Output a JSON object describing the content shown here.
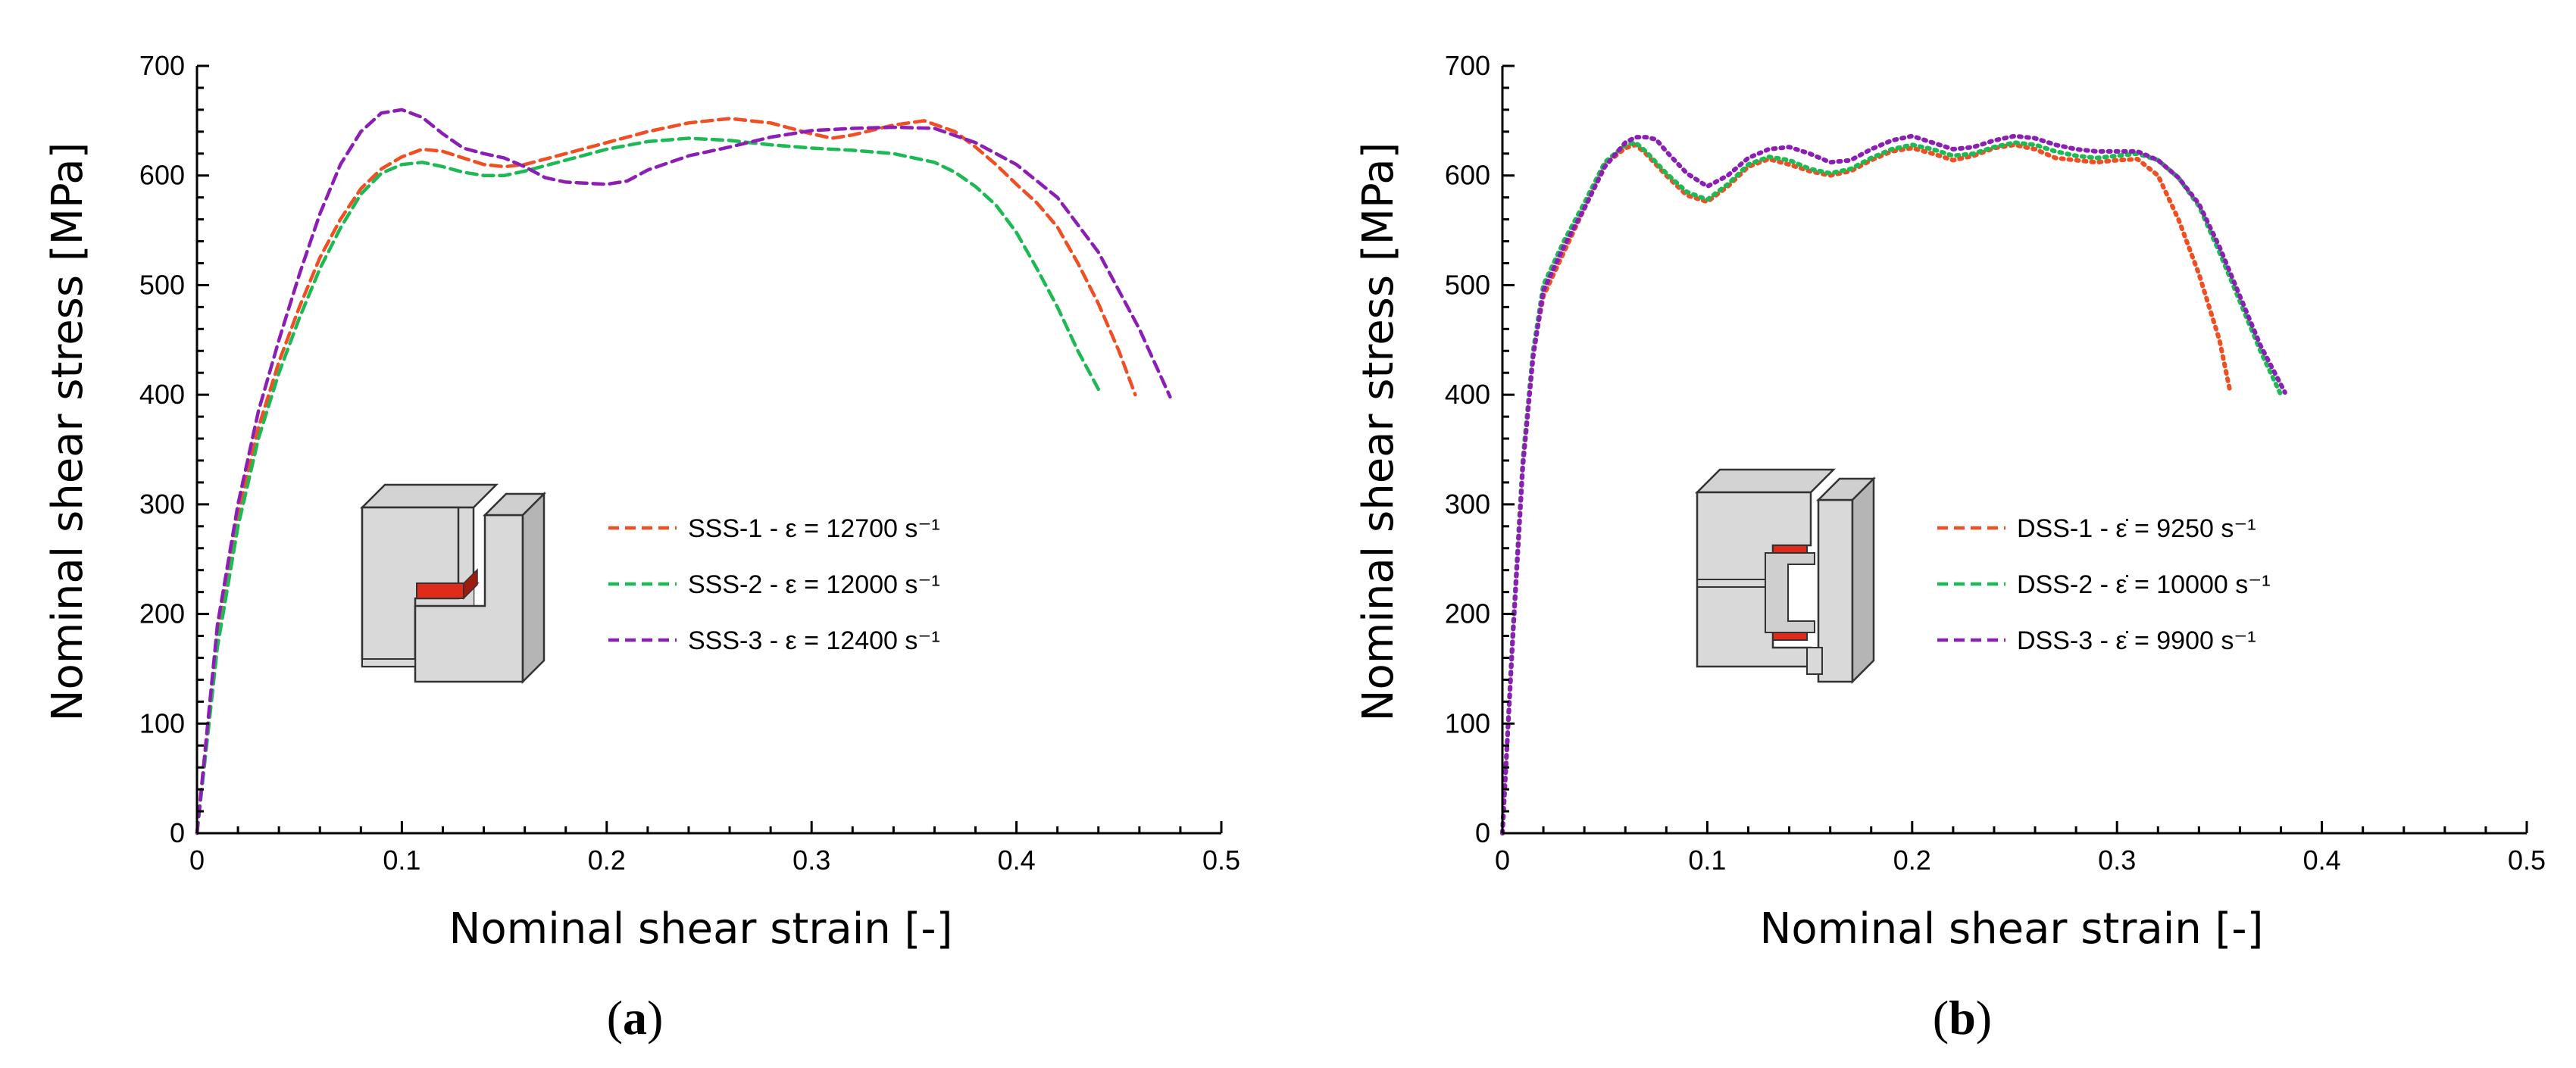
{
  "chart_data": [
    {
      "type": "line",
      "panel": "a",
      "panel_label_open": "(",
      "panel_label_letter": "a",
      "panel_label_close": ")",
      "xlabel": "Nominal shear strain [-]",
      "ylabel": "Nominal shear stress [MPa]",
      "xlim": [
        0,
        0.5
      ],
      "ylim": [
        0,
        700
      ],
      "xticks": [
        0,
        0.1,
        0.2,
        0.3,
        0.4,
        0.5
      ],
      "xtick_labels": [
        "0",
        "0.1",
        "0.2",
        "0.3",
        "0.4",
        "0.5"
      ],
      "yticks": [
        0,
        100,
        200,
        300,
        400,
        500,
        600,
        700
      ],
      "ytick_labels": [
        "0",
        "100",
        "200",
        "300",
        "400",
        "500",
        "600",
        "700"
      ],
      "line_style": "dashed",
      "legend_position": "center",
      "series": [
        {
          "name": "SSS-1",
          "legend_label": "SSS-1 - ε = 12700 s⁻¹",
          "color": "#f04e23",
          "x": [
            0,
            0.01,
            0.02,
            0.03,
            0.04,
            0.05,
            0.06,
            0.07,
            0.08,
            0.09,
            0.1,
            0.11,
            0.12,
            0.13,
            0.14,
            0.15,
            0.16,
            0.18,
            0.2,
            0.22,
            0.24,
            0.26,
            0.28,
            0.3,
            0.31,
            0.32,
            0.34,
            0.355,
            0.37,
            0.38,
            0.39,
            0.4,
            0.41,
            0.42,
            0.43,
            0.44,
            0.45,
            0.458
          ],
          "values": [
            0,
            180,
            290,
            370,
            430,
            480,
            525,
            560,
            588,
            606,
            617,
            624,
            622,
            616,
            610,
            608,
            610,
            620,
            630,
            640,
            648,
            652,
            648,
            638,
            634,
            637,
            646,
            650,
            640,
            626,
            610,
            592,
            575,
            553,
            520,
            483,
            440,
            400
          ]
        },
        {
          "name": "SSS-2",
          "legend_label": "SSS-2 - ε = 12000 s⁻¹",
          "color": "#1db954",
          "x": [
            0,
            0.01,
            0.02,
            0.03,
            0.04,
            0.05,
            0.06,
            0.07,
            0.08,
            0.09,
            0.1,
            0.11,
            0.12,
            0.13,
            0.14,
            0.15,
            0.16,
            0.18,
            0.2,
            0.22,
            0.24,
            0.26,
            0.28,
            0.3,
            0.32,
            0.34,
            0.36,
            0.37,
            0.38,
            0.39,
            0.4,
            0.41,
            0.42,
            0.43,
            0.44
          ],
          "values": [
            0,
            170,
            280,
            360,
            420,
            470,
            515,
            552,
            583,
            602,
            610,
            612,
            608,
            603,
            600,
            600,
            604,
            614,
            624,
            631,
            634,
            632,
            628,
            625,
            623,
            620,
            612,
            603,
            590,
            573,
            548,
            515,
            480,
            440,
            405
          ]
        },
        {
          "name": "SSS-3",
          "legend_label": "SSS-3 - ε = 12400 s⁻¹",
          "color": "#8b1fb5",
          "x": [
            0,
            0.01,
            0.02,
            0.03,
            0.04,
            0.05,
            0.06,
            0.07,
            0.08,
            0.09,
            0.1,
            0.11,
            0.12,
            0.13,
            0.14,
            0.15,
            0.16,
            0.17,
            0.18,
            0.2,
            0.21,
            0.22,
            0.24,
            0.26,
            0.28,
            0.3,
            0.32,
            0.34,
            0.36,
            0.38,
            0.4,
            0.42,
            0.44,
            0.46,
            0.475
          ],
          "values": [
            0,
            190,
            300,
            385,
            450,
            510,
            565,
            610,
            640,
            657,
            660,
            653,
            638,
            625,
            620,
            616,
            608,
            598,
            594,
            592,
            595,
            605,
            618,
            626,
            635,
            641,
            643,
            644,
            643,
            630,
            610,
            580,
            530,
            460,
            398
          ]
        }
      ]
    },
    {
      "type": "line",
      "panel": "b",
      "panel_label_open": "(",
      "panel_label_letter": "b",
      "panel_label_close": ")",
      "xlabel": "Nominal shear strain [-]",
      "ylabel": "Nominal shear stress [MPa]",
      "xlim": [
        0,
        0.5
      ],
      "ylim": [
        0,
        700
      ],
      "xticks": [
        0,
        0.1,
        0.2,
        0.3,
        0.4,
        0.5
      ],
      "xtick_labels": [
        "0",
        "0.1",
        "0.2",
        "0.3",
        "0.4",
        "0.5"
      ],
      "yticks": [
        0,
        100,
        200,
        300,
        400,
        500,
        600,
        700
      ],
      "ytick_labels": [
        "0",
        "100",
        "200",
        "300",
        "400",
        "500",
        "600",
        "700"
      ],
      "line_style": "dotted",
      "legend_position": "center",
      "series": [
        {
          "name": "DSS-1",
          "legend_label": "DSS-1 - ε̇ = 9250 s⁻¹",
          "color": "#f04e23",
          "x": [
            0,
            0.005,
            0.01,
            0.015,
            0.02,
            0.03,
            0.04,
            0.05,
            0.06,
            0.065,
            0.07,
            0.08,
            0.09,
            0.1,
            0.11,
            0.12,
            0.13,
            0.14,
            0.15,
            0.16,
            0.17,
            0.18,
            0.19,
            0.2,
            0.21,
            0.22,
            0.23,
            0.24,
            0.25,
            0.26,
            0.27,
            0.28,
            0.29,
            0.3,
            0.31,
            0.32,
            0.33,
            0.34,
            0.35,
            0.355
          ],
          "values": [
            0,
            180,
            340,
            440,
            490,
            530,
            570,
            610,
            625,
            628,
            620,
            600,
            582,
            576,
            590,
            608,
            615,
            610,
            604,
            600,
            604,
            614,
            622,
            625,
            620,
            614,
            618,
            625,
            628,
            624,
            616,
            614,
            612,
            614,
            615,
            600,
            560,
            510,
            450,
            405
          ]
        },
        {
          "name": "DSS-2",
          "legend_label": "DSS-2 - ε̇ = 10000 s⁻¹",
          "color": "#1db954",
          "x": [
            0,
            0.005,
            0.01,
            0.015,
            0.02,
            0.03,
            0.04,
            0.05,
            0.06,
            0.065,
            0.07,
            0.08,
            0.09,
            0.1,
            0.11,
            0.12,
            0.13,
            0.14,
            0.15,
            0.16,
            0.17,
            0.18,
            0.19,
            0.2,
            0.21,
            0.22,
            0.23,
            0.24,
            0.25,
            0.26,
            0.27,
            0.28,
            0.29,
            0.3,
            0.31,
            0.32,
            0.33,
            0.34,
            0.35,
            0.36,
            0.37,
            0.38
          ],
          "values": [
            0,
            180,
            340,
            440,
            500,
            540,
            575,
            612,
            628,
            630,
            622,
            602,
            585,
            578,
            592,
            610,
            617,
            614,
            606,
            602,
            606,
            616,
            624,
            628,
            624,
            618,
            620,
            626,
            630,
            628,
            622,
            618,
            616,
            618,
            620,
            614,
            598,
            572,
            530,
            485,
            440,
            400
          ]
        },
        {
          "name": "DSS-3",
          "legend_label": "DSS-3 - ε̇ = 9900 s⁻¹",
          "color": "#8b1fb5",
          "x": [
            0,
            0.005,
            0.01,
            0.015,
            0.02,
            0.03,
            0.04,
            0.05,
            0.06,
            0.065,
            0.07,
            0.075,
            0.08,
            0.09,
            0.1,
            0.11,
            0.12,
            0.13,
            0.14,
            0.15,
            0.16,
            0.17,
            0.18,
            0.19,
            0.2,
            0.21,
            0.22,
            0.23,
            0.24,
            0.25,
            0.26,
            0.27,
            0.28,
            0.29,
            0.3,
            0.31,
            0.32,
            0.33,
            0.34,
            0.35,
            0.36,
            0.37,
            0.382
          ],
          "values": [
            0,
            175,
            335,
            435,
            495,
            535,
            570,
            608,
            630,
            635,
            635,
            633,
            622,
            602,
            590,
            600,
            616,
            624,
            626,
            620,
            612,
            614,
            624,
            632,
            636,
            630,
            624,
            626,
            632,
            636,
            634,
            628,
            624,
            622,
            622,
            622,
            614,
            598,
            574,
            535,
            490,
            445,
            402
          ]
        }
      ]
    }
  ]
}
